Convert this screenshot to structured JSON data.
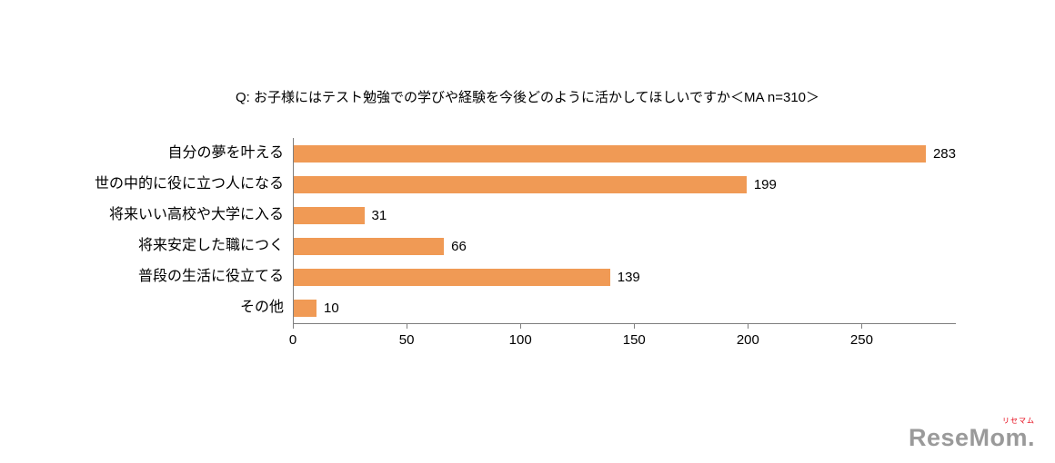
{
  "title": "Q:  お子様にはテスト勉強での学びや経験を今後どのように活かしてほしいですか＜MA n=310＞",
  "chart_data": {
    "type": "bar",
    "orientation": "horizontal",
    "title": "Q:  お子様にはテスト勉強での学びや経験を今後どのように活かしてほしいですか＜MA n=310＞",
    "categories": [
      "自分の夢を叶える",
      "世の中的に役に立つ人になる",
      "将来いい高校や大学に入る",
      "将来安定した職につく",
      "普段の生活に役立てる",
      "その他"
    ],
    "values": [
      283,
      199,
      31,
      66,
      139,
      10
    ],
    "xlabel": "",
    "ylabel": "",
    "xlim": [
      0,
      291
    ],
    "xticks": [
      0,
      50,
      100,
      150,
      200,
      250
    ],
    "grid": false,
    "legend": "none",
    "bar_color": "#F09A55"
  },
  "logo": {
    "kana": "リセマム",
    "text": "ReseMom."
  },
  "colors": {
    "bar": "#F09A55",
    "axis": "#7f7f7f",
    "text": "#000000",
    "logo_gray": "#9a9a9a",
    "logo_red": "#e60012"
  }
}
